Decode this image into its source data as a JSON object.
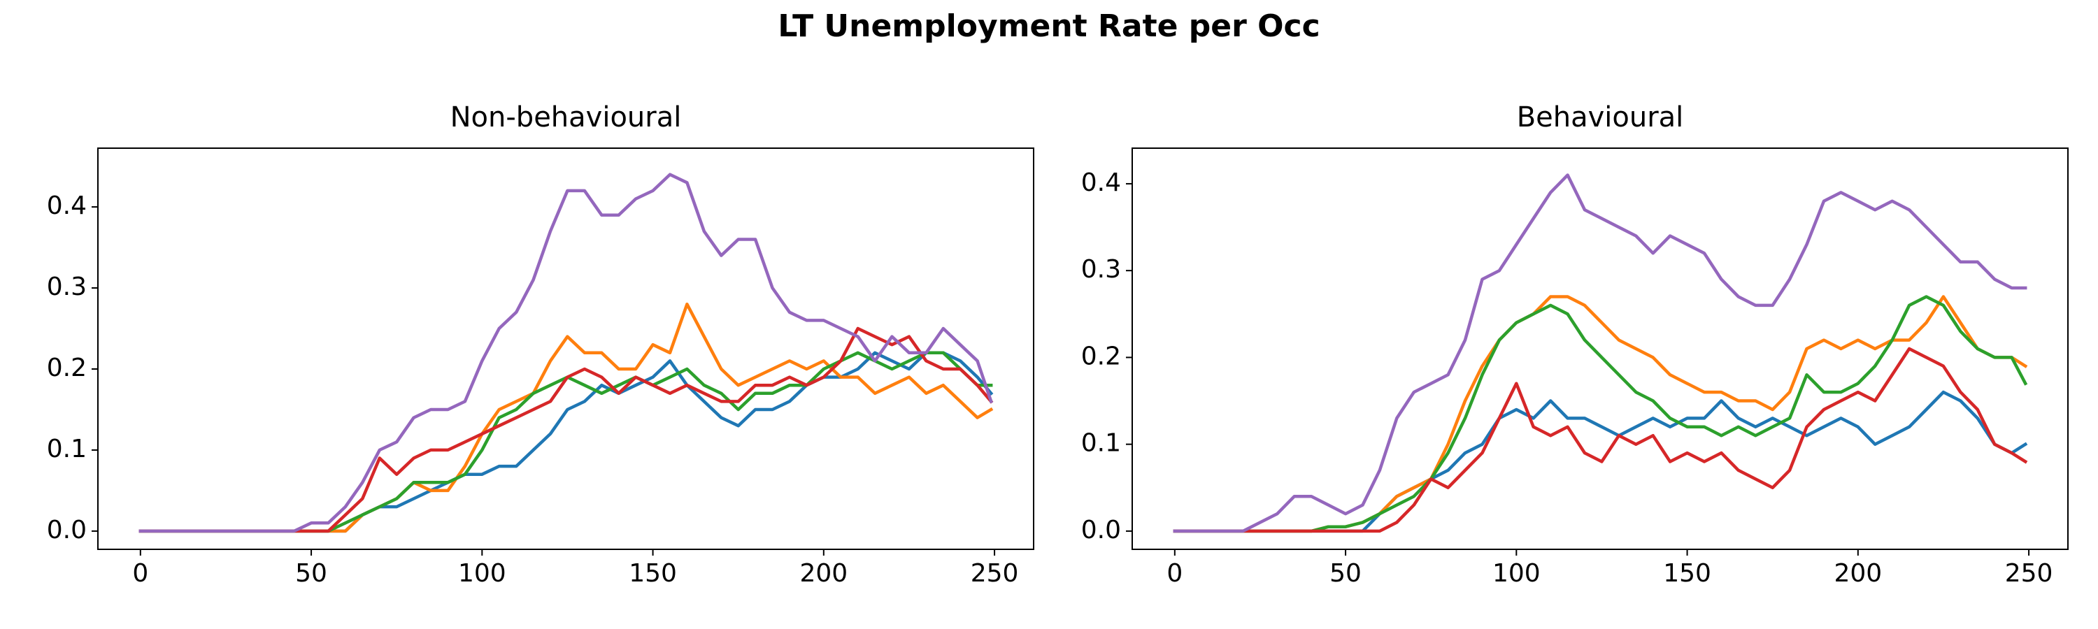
{
  "title": "LT Unemployment Rate per Occ",
  "chart_data": [
    {
      "type": "line",
      "title": "Non-behavioural",
      "x": [
        0,
        5,
        10,
        15,
        20,
        25,
        30,
        35,
        40,
        45,
        50,
        55,
        60,
        65,
        70,
        75,
        80,
        85,
        90,
        95,
        100,
        105,
        110,
        115,
        120,
        125,
        130,
        135,
        140,
        145,
        150,
        155,
        160,
        165,
        170,
        175,
        180,
        185,
        190,
        195,
        200,
        205,
        210,
        215,
        220,
        225,
        230,
        235,
        240,
        245,
        249
      ],
      "xlim": [
        -12.45,
        261.45
      ],
      "xticks": [
        0,
        50,
        100,
        150,
        200,
        250
      ],
      "ylim": [
        -0.0225,
        0.4725
      ],
      "yticks": [
        {
          "value": 0,
          "label": "0.0"
        },
        0.1,
        0.2,
        0.3,
        0.4
      ],
      "series": [
        {
          "color": "#1f77b4",
          "values": [
            0,
            0,
            0,
            0,
            0,
            0,
            0,
            0,
            0,
            0,
            0,
            0,
            0,
            0.02,
            0.03,
            0.03,
            0.04,
            0.05,
            0.06,
            0.07,
            0.07,
            0.08,
            0.08,
            0.1,
            0.12,
            0.15,
            0.16,
            0.18,
            0.17,
            0.18,
            0.19,
            0.21,
            0.18,
            0.16,
            0.14,
            0.13,
            0.15,
            0.15,
            0.16,
            0.18,
            0.19,
            0.19,
            0.2,
            0.22,
            0.21,
            0.2,
            0.22,
            0.22,
            0.21,
            0.19,
            0.17
          ]
        },
        {
          "color": "#ff7f0e",
          "values": [
            0,
            0,
            0,
            0,
            0,
            0,
            0,
            0,
            0,
            0,
            0,
            0,
            0,
            0.02,
            0.03,
            0.04,
            0.06,
            0.05,
            0.05,
            0.08,
            0.12,
            0.15,
            0.16,
            0.17,
            0.21,
            0.24,
            0.22,
            0.22,
            0.2,
            0.2,
            0.23,
            0.22,
            0.28,
            0.24,
            0.2,
            0.18,
            0.19,
            0.2,
            0.21,
            0.2,
            0.21,
            0.19,
            0.19,
            0.17,
            0.18,
            0.19,
            0.17,
            0.18,
            0.16,
            0.14,
            0.15
          ]
        },
        {
          "color": "#2ca02c",
          "values": [
            0,
            0,
            0,
            0,
            0,
            0,
            0,
            0,
            0,
            0,
            0,
            0,
            0.01,
            0.02,
            0.03,
            0.04,
            0.06,
            0.06,
            0.06,
            0.07,
            0.1,
            0.14,
            0.15,
            0.17,
            0.18,
            0.19,
            0.18,
            0.17,
            0.18,
            0.19,
            0.18,
            0.19,
            0.2,
            0.18,
            0.17,
            0.15,
            0.17,
            0.17,
            0.18,
            0.18,
            0.2,
            0.21,
            0.22,
            0.21,
            0.2,
            0.21,
            0.22,
            0.22,
            0.2,
            0.18,
            0.18
          ]
        },
        {
          "color": "#d62728",
          "values": [
            0,
            0,
            0,
            0,
            0,
            0,
            0,
            0,
            0,
            0,
            0,
            0,
            0.02,
            0.04,
            0.09,
            0.07,
            0.09,
            0.1,
            0.1,
            0.11,
            0.12,
            0.13,
            0.14,
            0.15,
            0.16,
            0.19,
            0.2,
            0.19,
            0.17,
            0.19,
            0.18,
            0.17,
            0.18,
            0.17,
            0.16,
            0.16,
            0.18,
            0.18,
            0.19,
            0.18,
            0.19,
            0.21,
            0.25,
            0.24,
            0.23,
            0.24,
            0.21,
            0.2,
            0.2,
            0.18,
            0.16
          ]
        },
        {
          "color": "#9467bd",
          "values": [
            0,
            0,
            0,
            0,
            0,
            0,
            0,
            0,
            0,
            0,
            0.01,
            0.01,
            0.03,
            0.06,
            0.1,
            0.11,
            0.14,
            0.15,
            0.15,
            0.16,
            0.21,
            0.25,
            0.27,
            0.31,
            0.37,
            0.42,
            0.42,
            0.39,
            0.39,
            0.41,
            0.42,
            0.44,
            0.43,
            0.37,
            0.34,
            0.36,
            0.36,
            0.3,
            0.27,
            0.26,
            0.26,
            0.25,
            0.24,
            0.21,
            0.24,
            0.22,
            0.22,
            0.25,
            0.23,
            0.21,
            0.16
          ]
        }
      ]
    },
    {
      "type": "line",
      "title": "Behavioural",
      "x": [
        0,
        5,
        10,
        15,
        20,
        25,
        30,
        35,
        40,
        45,
        50,
        55,
        60,
        65,
        70,
        75,
        80,
        85,
        90,
        95,
        100,
        105,
        110,
        115,
        120,
        125,
        130,
        135,
        140,
        145,
        150,
        155,
        160,
        165,
        170,
        175,
        180,
        185,
        190,
        195,
        200,
        205,
        210,
        215,
        220,
        225,
        230,
        235,
        240,
        245,
        249
      ],
      "xlim": [
        -12.45,
        261.45
      ],
      "xticks": [
        0,
        50,
        100,
        150,
        200,
        250
      ],
      "ylim": [
        -0.021,
        0.441
      ],
      "yticks": [
        {
          "value": 0,
          "label": "0.0"
        },
        0.1,
        0.2,
        0.3,
        0.4
      ],
      "series": [
        {
          "color": "#1f77b4",
          "values": [
            0,
            0,
            0,
            0,
            0,
            0,
            0,
            0,
            0,
            0,
            0,
            0,
            0.02,
            0.04,
            0.05,
            0.06,
            0.07,
            0.09,
            0.1,
            0.13,
            0.14,
            0.13,
            0.15,
            0.13,
            0.13,
            0.12,
            0.11,
            0.12,
            0.13,
            0.12,
            0.13,
            0.13,
            0.15,
            0.13,
            0.12,
            0.13,
            0.12,
            0.11,
            0.12,
            0.13,
            0.12,
            0.1,
            0.11,
            0.12,
            0.14,
            0.16,
            0.15,
            0.13,
            0.1,
            0.09,
            0.1
          ]
        },
        {
          "color": "#ff7f0e",
          "values": [
            0,
            0,
            0,
            0,
            0,
            0,
            0,
            0,
            0,
            0.005,
            0.005,
            0.01,
            0.02,
            0.04,
            0.05,
            0.06,
            0.1,
            0.15,
            0.19,
            0.22,
            0.24,
            0.25,
            0.27,
            0.27,
            0.26,
            0.24,
            0.22,
            0.21,
            0.2,
            0.18,
            0.17,
            0.16,
            0.16,
            0.15,
            0.15,
            0.14,
            0.16,
            0.21,
            0.22,
            0.21,
            0.22,
            0.21,
            0.22,
            0.22,
            0.24,
            0.27,
            0.24,
            0.21,
            0.2,
            0.2,
            0.19
          ]
        },
        {
          "color": "#2ca02c",
          "values": [
            0,
            0,
            0,
            0,
            0,
            0,
            0,
            0,
            0,
            0.005,
            0.005,
            0.01,
            0.02,
            0.03,
            0.04,
            0.06,
            0.09,
            0.13,
            0.18,
            0.22,
            0.24,
            0.25,
            0.26,
            0.25,
            0.22,
            0.2,
            0.18,
            0.16,
            0.15,
            0.13,
            0.12,
            0.12,
            0.11,
            0.12,
            0.11,
            0.12,
            0.13,
            0.18,
            0.16,
            0.16,
            0.17,
            0.19,
            0.22,
            0.26,
            0.27,
            0.26,
            0.23,
            0.21,
            0.2,
            0.2,
            0.17
          ]
        },
        {
          "color": "#d62728",
          "values": [
            0,
            0,
            0,
            0,
            0,
            0,
            0,
            0,
            0,
            0,
            0,
            0,
            0,
            0.01,
            0.03,
            0.06,
            0.05,
            0.07,
            0.09,
            0.13,
            0.17,
            0.12,
            0.11,
            0.12,
            0.09,
            0.08,
            0.11,
            0.1,
            0.11,
            0.08,
            0.09,
            0.08,
            0.09,
            0.07,
            0.06,
            0.05,
            0.07,
            0.12,
            0.14,
            0.15,
            0.16,
            0.15,
            0.18,
            0.21,
            0.2,
            0.19,
            0.16,
            0.14,
            0.1,
            0.09,
            0.08
          ]
        },
        {
          "color": "#9467bd",
          "values": [
            0,
            0,
            0,
            0,
            0,
            0.01,
            0.02,
            0.04,
            0.04,
            0.03,
            0.02,
            0.03,
            0.07,
            0.13,
            0.16,
            0.17,
            0.18,
            0.22,
            0.29,
            0.3,
            0.33,
            0.36,
            0.39,
            0.41,
            0.37,
            0.36,
            0.35,
            0.34,
            0.32,
            0.34,
            0.33,
            0.32,
            0.29,
            0.27,
            0.26,
            0.26,
            0.29,
            0.33,
            0.38,
            0.39,
            0.38,
            0.37,
            0.38,
            0.37,
            0.35,
            0.33,
            0.31,
            0.31,
            0.29,
            0.28,
            0.28
          ]
        }
      ]
    }
  ]
}
